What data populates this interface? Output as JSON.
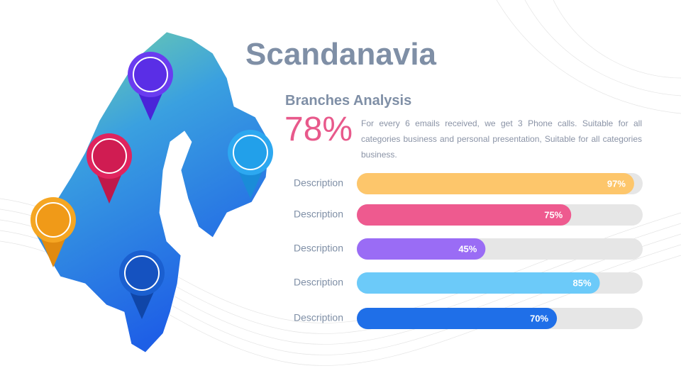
{
  "title": "Scandanavia",
  "subtitle": "Branches Analysis",
  "highlight": "78%",
  "text": "For every 6 emails received, we get 3 Phone calls. Suitable for all categories business and personal presentation, Suitable for all categories business.",
  "chart_data": {
    "type": "bar",
    "orientation": "horizontal",
    "categories": [
      "Description",
      "Description",
      "Description",
      "Description",
      "Description"
    ],
    "values": [
      97,
      75,
      45,
      85,
      70
    ],
    "value_labels": [
      "97%",
      "75%",
      "45%",
      "85%",
      "70%"
    ],
    "colors": [
      "#fdc66b",
      "#ee5a8f",
      "#9a6cf5",
      "#6ccaf9",
      "#1f6fe8"
    ],
    "track_color": "#e6e6e6",
    "xlim": [
      0,
      100
    ]
  }
}
